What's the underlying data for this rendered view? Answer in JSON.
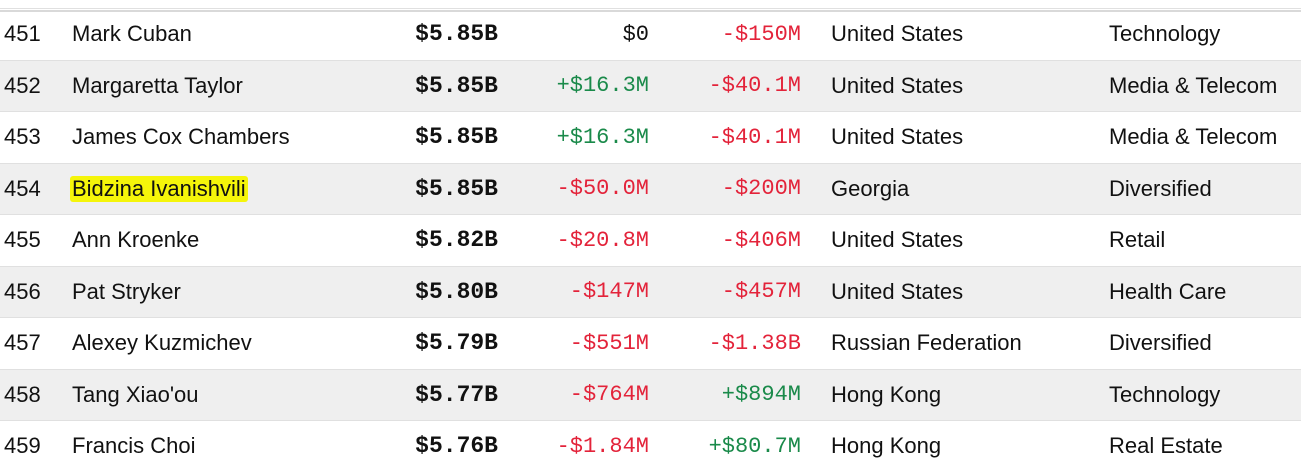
{
  "table": {
    "rows": [
      {
        "rank": "451",
        "name": "Mark Cuban",
        "net_worth": "$5.85B",
        "last_change": "$0",
        "last_change_sign": "neutral",
        "ytd_change": "-$150M",
        "ytd_change_sign": "neg",
        "country": "United States",
        "industry": "Technology",
        "highlighted": false
      },
      {
        "rank": "452",
        "name": "Margaretta Taylor",
        "net_worth": "$5.85B",
        "last_change": "+$16.3M",
        "last_change_sign": "pos",
        "ytd_change": "-$40.1M",
        "ytd_change_sign": "neg",
        "country": "United States",
        "industry": "Media & Telecom",
        "highlighted": false
      },
      {
        "rank": "453",
        "name": "James Cox Chambers",
        "net_worth": "$5.85B",
        "last_change": "+$16.3M",
        "last_change_sign": "pos",
        "ytd_change": "-$40.1M",
        "ytd_change_sign": "neg",
        "country": "United States",
        "industry": "Media & Telecom",
        "highlighted": false
      },
      {
        "rank": "454",
        "name": "Bidzina Ivanishvili",
        "net_worth": "$5.85B",
        "last_change": "-$50.0M",
        "last_change_sign": "neg",
        "ytd_change": "-$200M",
        "ytd_change_sign": "neg",
        "country": "Georgia",
        "industry": "Diversified",
        "highlighted": true
      },
      {
        "rank": "455",
        "name": "Ann Kroenke",
        "net_worth": "$5.82B",
        "last_change": "-$20.8M",
        "last_change_sign": "neg",
        "ytd_change": "-$406M",
        "ytd_change_sign": "neg",
        "country": "United States",
        "industry": "Retail",
        "highlighted": false
      },
      {
        "rank": "456",
        "name": "Pat Stryker",
        "net_worth": "$5.80B",
        "last_change": "-$147M",
        "last_change_sign": "neg",
        "ytd_change": "-$457M",
        "ytd_change_sign": "neg",
        "country": "United States",
        "industry": "Health Care",
        "highlighted": false
      },
      {
        "rank": "457",
        "name": "Alexey Kuzmichev",
        "net_worth": "$5.79B",
        "last_change": "-$551M",
        "last_change_sign": "neg",
        "ytd_change": "-$1.38B",
        "ytd_change_sign": "neg",
        "country": "Russian Federation",
        "industry": "Diversified",
        "highlighted": false
      },
      {
        "rank": "458",
        "name": "Tang Xiao'ou",
        "net_worth": "$5.77B",
        "last_change": "-$764M",
        "last_change_sign": "neg",
        "ytd_change": "+$894M",
        "ytd_change_sign": "pos",
        "country": "Hong Kong",
        "industry": "Technology",
        "highlighted": false
      },
      {
        "rank": "459",
        "name": "Francis Choi",
        "net_worth": "$5.76B",
        "last_change": "-$1.84M",
        "last_change_sign": "neg",
        "ytd_change": "+$80.7M",
        "ytd_change_sign": "pos",
        "country": "Hong Kong",
        "industry": "Real Estate",
        "highlighted": false
      }
    ]
  },
  "colors": {
    "positive": "#1a8a4a",
    "negative": "#e3233a",
    "highlight": "#f5f50a",
    "alt_row": "#efefef"
  }
}
